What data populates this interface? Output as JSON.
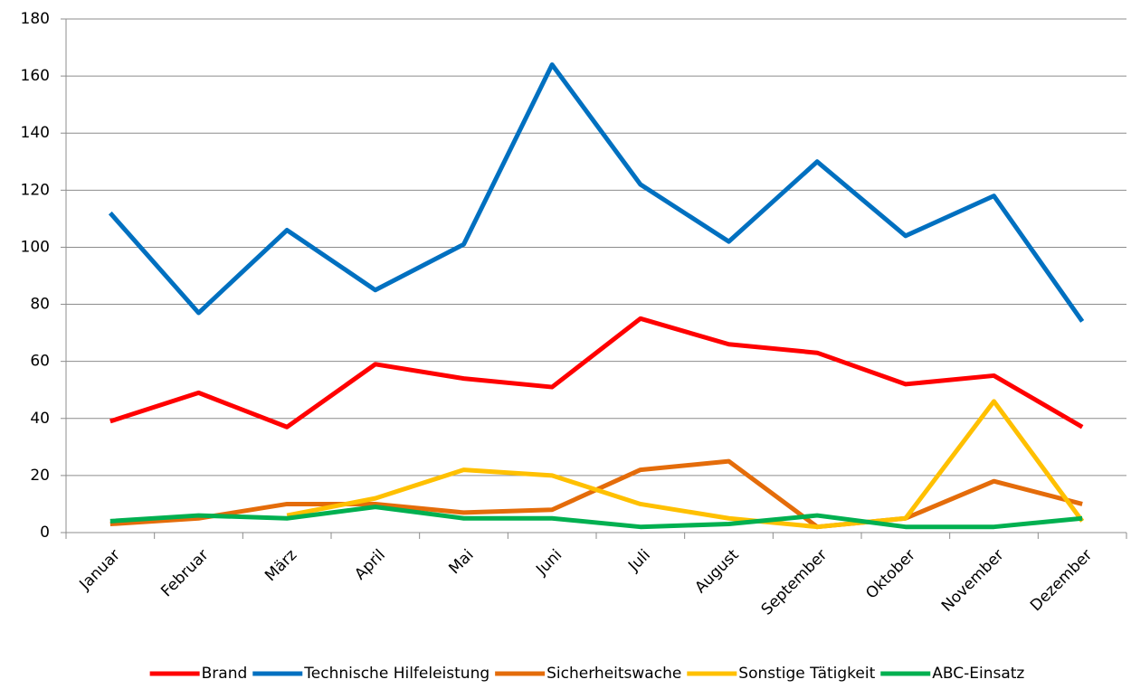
{
  "chart_data": {
    "type": "line",
    "categories": [
      "Januar",
      "Februar",
      "März",
      "April",
      "Mai",
      "Juni",
      "Juli",
      "August",
      "September",
      "Oktober",
      "November",
      "Dezember"
    ],
    "series": [
      {
        "name": "Brand",
        "color": "#ff0000",
        "values": [
          39,
          49,
          37,
          59,
          54,
          51,
          75,
          66,
          63,
          52,
          55,
          37
        ]
      },
      {
        "name": "Technische Hilfeleistung",
        "color": "#0070c0",
        "values": [
          112,
          77,
          106,
          85,
          101,
          164,
          122,
          102,
          130,
          104,
          118,
          74
        ]
      },
      {
        "name": "Sicherheitswache",
        "color": "#e46c0a",
        "values": [
          3,
          5,
          10,
          10,
          7,
          8,
          22,
          25,
          2,
          5,
          18,
          10
        ]
      },
      {
        "name": "Sonstige Tätigkeit",
        "color": "#ffc000",
        "values": [
          null,
          null,
          6,
          12,
          22,
          20,
          10,
          5,
          2,
          5,
          46,
          4
        ]
      },
      {
        "name": "ABC-Einsatz",
        "color": "#00b050",
        "values": [
          4,
          6,
          5,
          9,
          5,
          5,
          2,
          3,
          6,
          2,
          2,
          5
        ]
      }
    ],
    "ylim": [
      0,
      180
    ],
    "yticks": [
      0,
      20,
      40,
      60,
      80,
      100,
      120,
      140,
      160,
      180
    ],
    "grid": true,
    "legend": "bottom"
  }
}
